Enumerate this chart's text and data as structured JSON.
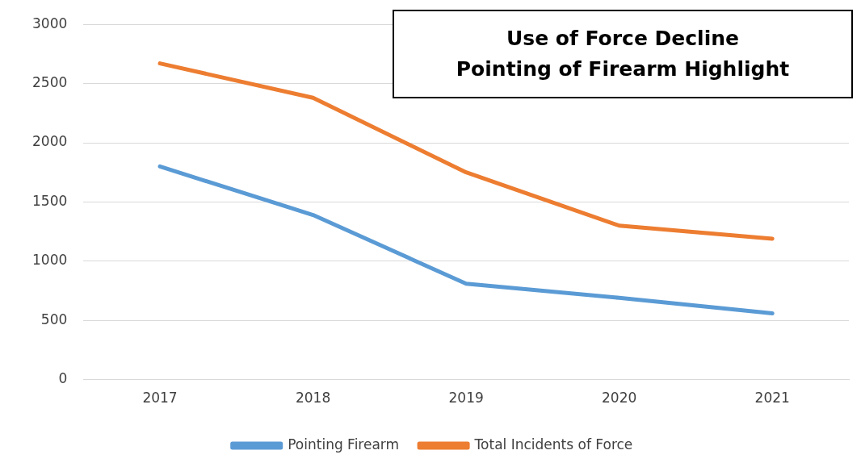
{
  "chart_data": {
    "type": "line",
    "title": "Use of Force Decline\nPointing of Firearm Highlight",
    "categories": [
      "2017",
      "2018",
      "2019",
      "2020",
      "2021"
    ],
    "series": [
      {
        "name": "Pointing Firearm",
        "color": "#5b9bd5",
        "values": [
          1800,
          1390,
          810,
          690,
          560
        ]
      },
      {
        "name": "Total Incidents of Force",
        "color": "#ed7d31",
        "values": [
          2670,
          2380,
          1750,
          1300,
          1190
        ]
      }
    ],
    "ylim": [
      0,
      3000
    ],
    "yticks": [
      0,
      500,
      1000,
      1500,
      2000,
      2500,
      3000
    ],
    "grid": "y",
    "legend": "bottom",
    "marker": "none",
    "line_style": "solid"
  }
}
